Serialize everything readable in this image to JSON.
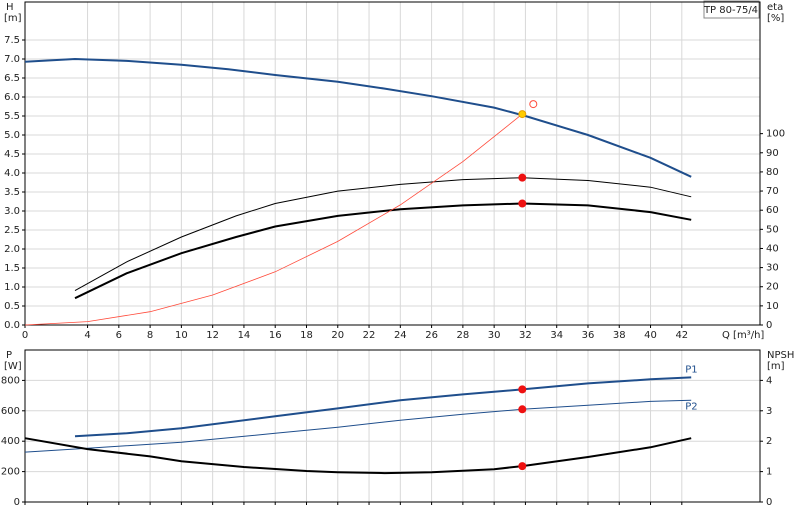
{
  "chart_data": [
    {
      "type": "line",
      "title": "TP 80-75/4",
      "ylabel": "H",
      "ylabel_unit": "[m]",
      "y2label": "eta",
      "y2label_unit": "[%]",
      "xlabel": "Q [m³/h]",
      "xlim": [
        0,
        47
      ],
      "xticks": [
        0,
        4,
        6,
        8,
        10,
        12,
        14,
        16,
        18,
        20,
        22,
        24,
        26,
        28,
        30,
        32,
        34,
        36,
        38,
        40,
        42
      ],
      "show_xtick_labels": true,
      "ylim": [
        0,
        8.5
      ],
      "yticks": [
        {
          "value": 0,
          "label": "0.0"
        },
        0.5,
        {
          "value": 1,
          "label": "1.0"
        },
        1.5,
        {
          "value": 2,
          "label": "2.0"
        },
        2.5,
        {
          "value": 3,
          "label": "3.0"
        },
        3.5,
        {
          "value": 4,
          "label": "4.0"
        },
        4.5,
        {
          "value": 5,
          "label": "5.0"
        },
        5.5,
        {
          "value": 6,
          "label": "6.0"
        },
        6.5,
        {
          "value": 7,
          "label": "7.0"
        },
        7.5
      ],
      "y2lim": [
        0,
        168.8
      ],
      "y2ticks": [
        0,
        10,
        20,
        30,
        40,
        50,
        60,
        70,
        80,
        90,
        100
      ],
      "grid": true,
      "series": [
        {
          "color": "#1f4e8c",
          "width": 2,
          "x": [
            0,
            3.2,
            6.5,
            10,
            13,
            16,
            20,
            23,
            26,
            30,
            32,
            36,
            40,
            42.6
          ],
          "values": [
            6.93,
            7.0,
            6.95,
            6.85,
            6.73,
            6.58,
            6.4,
            6.22,
            6.02,
            5.72,
            5.5,
            5.0,
            4.4,
            3.9
          ]
        },
        {
          "color": "#000000",
          "width": 2,
          "axis": "y2",
          "x": [
            3.2,
            6.5,
            10,
            13.5,
            16,
            20,
            24,
            28,
            31.8,
            36,
            40,
            42.6
          ],
          "values": [
            14,
            27,
            37.5,
            46,
            51.5,
            57,
            60.5,
            62.5,
            63.5,
            62.5,
            59,
            55
          ]
        },
        {
          "color": "#000000",
          "width": 1,
          "axis": "y2",
          "x": [
            3.2,
            6.5,
            10,
            13.5,
            16,
            20,
            24,
            28,
            31.8,
            36,
            40,
            42.6
          ],
          "values": [
            18,
            33,
            46,
            57,
            63.5,
            70,
            73.5,
            76,
            77,
            75.5,
            72,
            67
          ]
        },
        {
          "color": "#ff4a3a",
          "width": 0.8,
          "x": [
            0,
            4,
            8,
            12,
            16,
            20,
            24,
            28,
            31.8
          ],
          "values": [
            0,
            0.09,
            0.35,
            0.79,
            1.4,
            2.2,
            3.16,
            4.3,
            5.55
          ]
        },
        {
          "mode": "markers",
          "color": "#ffcc00",
          "edge": "#e8a000",
          "ring": "#ff4a3a",
          "x": [
            31.8
          ],
          "values": [
            5.55
          ]
        },
        {
          "mode": "markers",
          "color": "#ee1111",
          "axis": "y2",
          "x": [
            31.8,
            31.8
          ],
          "values": [
            77,
            63.5
          ]
        }
      ]
    },
    {
      "type": "line",
      "ylabel": "P",
      "ylabel_unit": "[W]",
      "y2label": "NPSH",
      "y2label_unit": "[m]",
      "xlim": [
        0,
        47
      ],
      "xticks": [
        0,
        4,
        6,
        8,
        10,
        12,
        14,
        16,
        18,
        20,
        22,
        24,
        26,
        28,
        30,
        32,
        34,
        36,
        38,
        40,
        42
      ],
      "show_xtick_labels": false,
      "ylim": [
        0,
        1000
      ],
      "yticks": [
        0,
        200,
        400,
        600,
        800
      ],
      "y2lim": [
        0,
        5
      ],
      "y2ticks": [
        0,
        1,
        2,
        3,
        4
      ],
      "grid": true,
      "series": [
        {
          "name": "P1",
          "color": "#1f4e8c",
          "width": 2,
          "x": [
            3.2,
            6.5,
            10,
            16,
            20,
            24,
            28,
            31.8,
            36,
            40,
            42.6
          ],
          "values": [
            433,
            452,
            485,
            564,
            616,
            669,
            708,
            741,
            780,
            807,
            820
          ]
        },
        {
          "name": "P2",
          "color": "#1f4e8c",
          "width": 1,
          "x": [
            0,
            4,
            10,
            16,
            20,
            24,
            28,
            31.8,
            36,
            40,
            42.6
          ],
          "values": [
            328,
            354,
            393,
            452,
            492,
            538,
            577,
            610,
            636,
            662,
            669
          ]
        },
        {
          "color": "#000000",
          "width": 2,
          "axis": "y2",
          "x": [
            0,
            4,
            8,
            10,
            14,
            18,
            20,
            23,
            26,
            30,
            31.8,
            36,
            40,
            42.6
          ],
          "values": [
            2.1,
            1.74,
            1.5,
            1.34,
            1.15,
            1.02,
            0.98,
            0.95,
            0.98,
            1.08,
            1.18,
            1.48,
            1.8,
            2.1
          ]
        },
        {
          "mode": "markers",
          "color": "#ee1111",
          "x": [
            31.8,
            31.8
          ],
          "values": [
            741,
            610
          ]
        },
        {
          "mode": "markers",
          "color": "#ee1111",
          "axis": "y2",
          "x": [
            31.8
          ],
          "values": [
            1.18
          ]
        }
      ]
    }
  ]
}
